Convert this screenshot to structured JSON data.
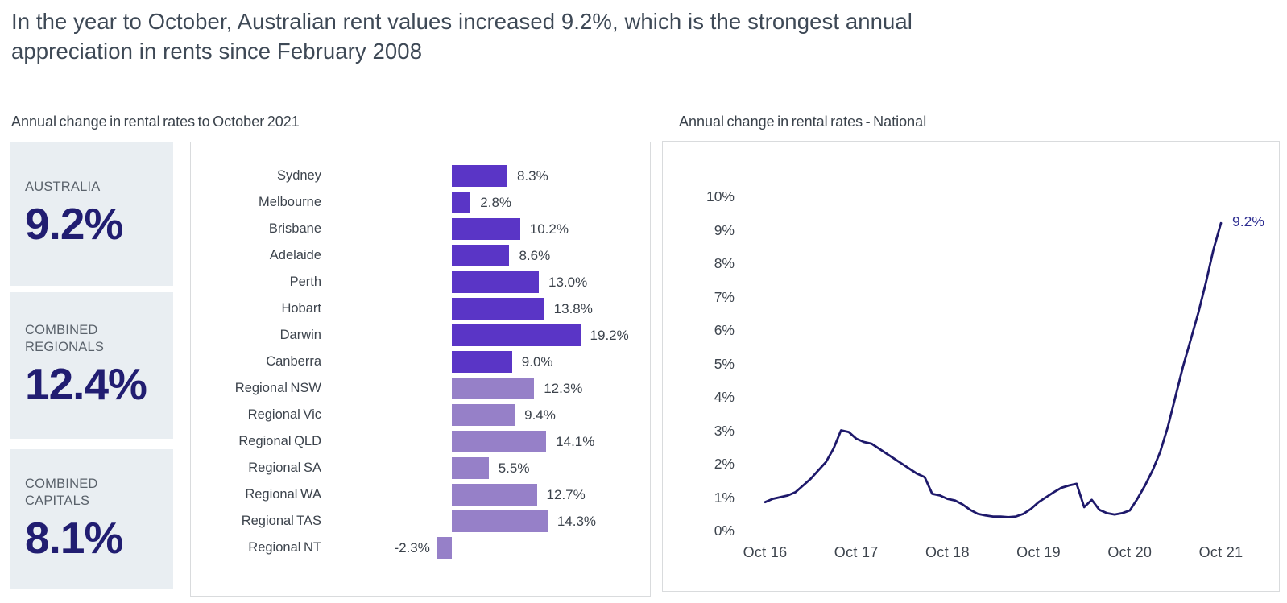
{
  "page": {
    "title_line1": "In the year to October, Australian rent values increased 9.2%, which  is the strongest annual",
    "title_line2": "appreciation in rents since February 2008"
  },
  "stats": {
    "items": [
      {
        "label": "AUSTRALIA",
        "value": "9.2%"
      },
      {
        "label": "COMBINED REGIONALS",
        "value": "12.4%"
      },
      {
        "label": "COMBINED CAPITALS",
        "value": "8.1%"
      }
    ]
  },
  "colors": {
    "bar_capital": "#5a35c6",
    "bar_regional": "#9680c8",
    "line": "#1e196b",
    "annotation": "#2c2c90",
    "stat_value": "#211d71",
    "stat_card_bg": "#e9eef2",
    "panel_border": "#d9dbdd",
    "text_dark": "#3d444d"
  },
  "chart_data": [
    {
      "type": "bar",
      "title": "Annual change in rental rates to October 2021",
      "orientation": "horizontal",
      "unit": "%",
      "categories": [
        "Sydney",
        "Melbourne",
        "Brisbane",
        "Adelaide",
        "Perth",
        "Hobart",
        "Darwin",
        "Canberra",
        "Regional NSW",
        "Regional Vic",
        "Regional QLD",
        "Regional SA",
        "Regional WA",
        "Regional TAS",
        "Regional NT"
      ],
      "values": [
        8.3,
        2.8,
        10.2,
        8.6,
        13.0,
        13.8,
        19.2,
        9.0,
        12.3,
        9.4,
        14.1,
        5.5,
        12.7,
        14.3,
        -2.3
      ],
      "value_labels": [
        "8.3%",
        "2.8%",
        "10.2%",
        "8.6%",
        "13.0%",
        "13.8%",
        "19.2%",
        "9.0%",
        "12.3%",
        "9.4%",
        "14.1%",
        "5.5%",
        "12.7%",
        "14.3%",
        "-2.3%"
      ],
      "groups": [
        "capital",
        "capital",
        "capital",
        "capital",
        "capital",
        "capital",
        "capital",
        "capital",
        "regional",
        "regional",
        "regional",
        "regional",
        "regional",
        "regional",
        "regional"
      ],
      "grid": false,
      "legend": false
    },
    {
      "type": "line",
      "title": "Annual change in rental rates - National",
      "unit": "%",
      "interval": "monthly",
      "x_start": "Oct 16",
      "x_end": "Oct 21",
      "xticks": [
        "Oct 16",
        "Oct 17",
        "Oct 18",
        "Oct 19",
        "Oct 20",
        "Oct 21"
      ],
      "yticks": [
        0,
        1,
        2,
        3,
        4,
        5,
        6,
        7,
        8,
        9,
        10
      ],
      "ytick_labels": [
        "0%",
        "1%",
        "2%",
        "3%",
        "4%",
        "5%",
        "6%",
        "7%",
        "8%",
        "9%",
        "10%"
      ],
      "ylim": [
        0,
        10
      ],
      "grid": false,
      "legend": false,
      "values": [
        0.85,
        0.95,
        1.0,
        1.05,
        1.15,
        1.35,
        1.55,
        1.8,
        2.05,
        2.45,
        3.0,
        2.95,
        2.75,
        2.65,
        2.6,
        2.45,
        2.3,
        2.15,
        2.0,
        1.85,
        1.7,
        1.6,
        1.1,
        1.05,
        0.95,
        0.9,
        0.78,
        0.62,
        0.5,
        0.45,
        0.42,
        0.42,
        0.4,
        0.42,
        0.5,
        0.65,
        0.85,
        1.0,
        1.15,
        1.28,
        1.35,
        1.4,
        0.7,
        0.92,
        0.62,
        0.52,
        0.48,
        0.52,
        0.6,
        0.95,
        1.35,
        1.8,
        2.35,
        3.1,
        4.0,
        4.9,
        5.7,
        6.5,
        7.4,
        8.4,
        9.2
      ],
      "end_annotation": "9.2%",
      "end_value": 9.2
    }
  ]
}
